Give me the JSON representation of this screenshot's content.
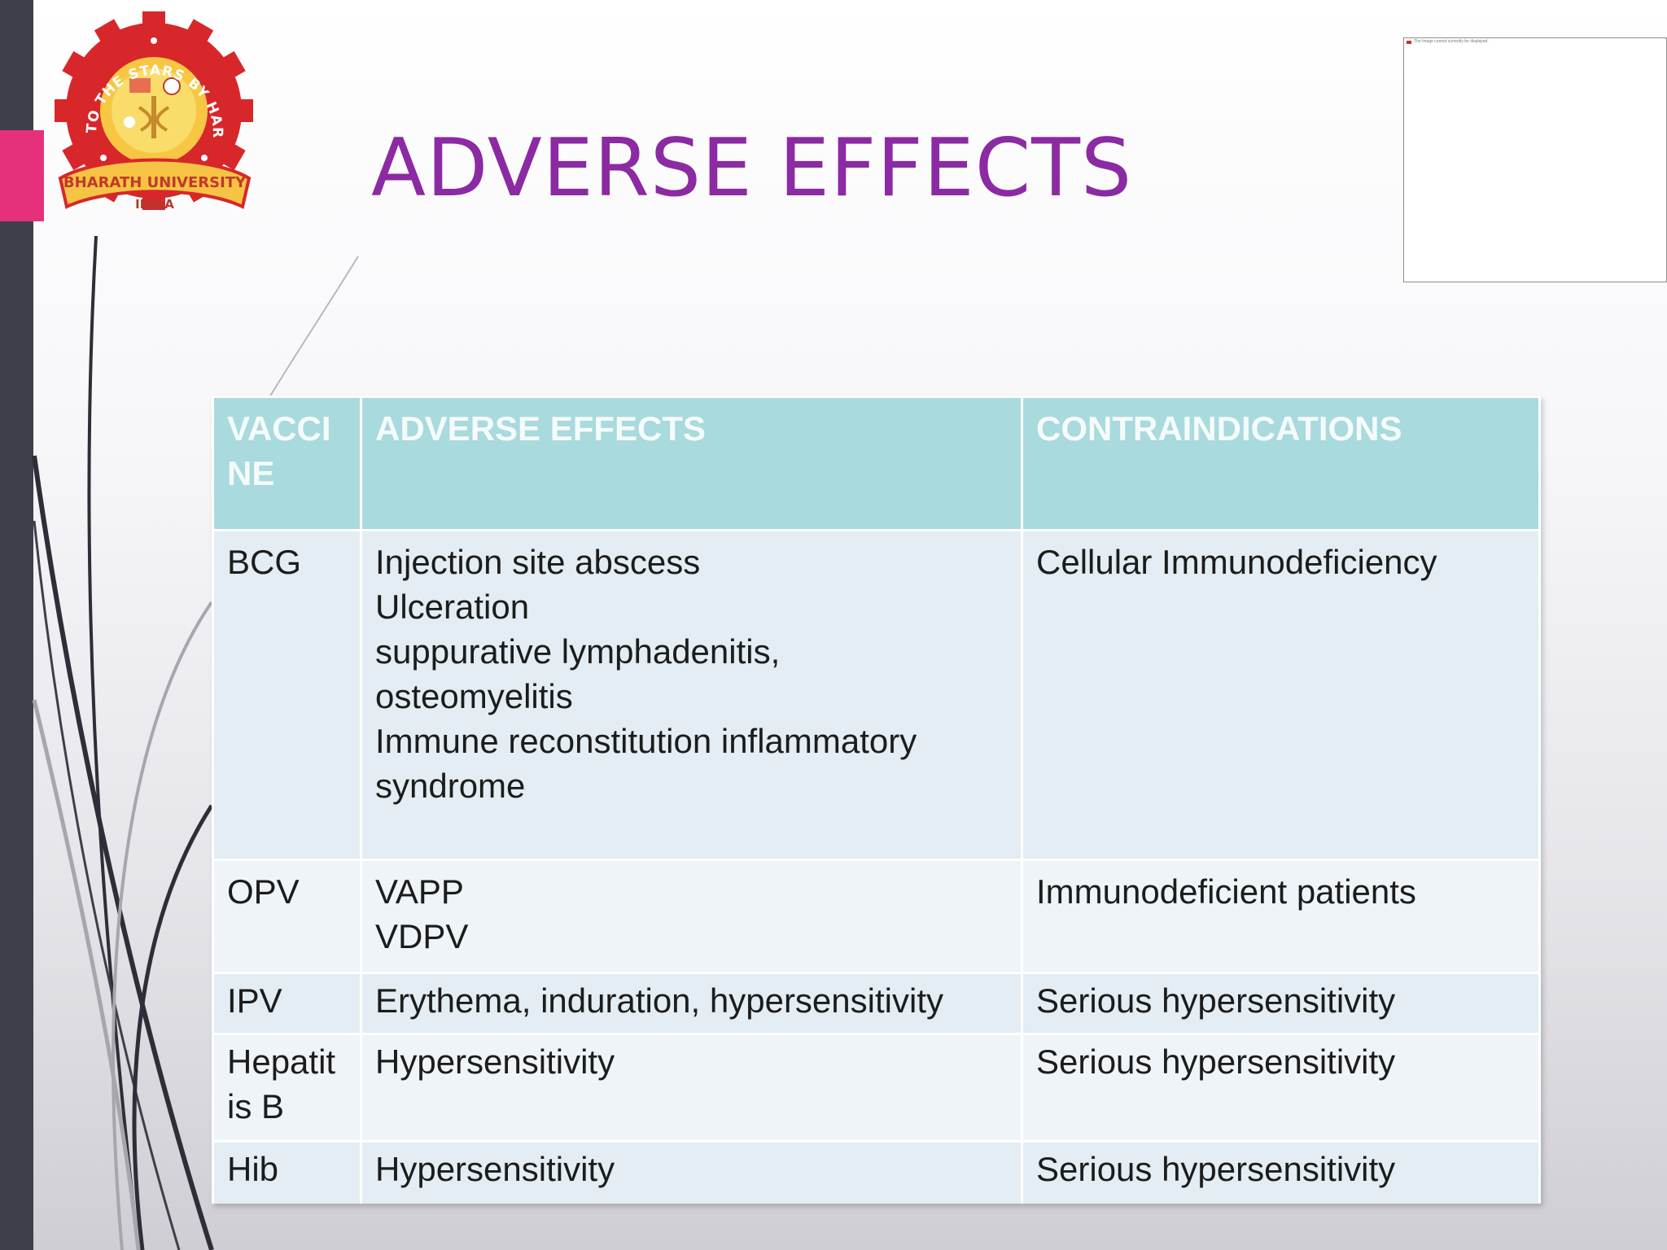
{
  "title": "ADVERSE EFFECTS",
  "logo": {
    "arc_text": "TO THE STARS BY HARD WORK",
    "ribbon_text": "BHARATH UNIVERSITY",
    "sub_text": "INDIA"
  },
  "thumbnail": {
    "caption": "The Image cannot currently be displayed."
  },
  "table": {
    "headers": [
      "VACCI NE",
      "ADVERSE EFFECTS",
      "CONTRAINDICATIONS"
    ],
    "header_lines": {
      "vaccine": [
        "VACCI",
        "NE"
      ]
    },
    "rows": [
      {
        "vaccine": [
          "BCG"
        ],
        "adverse": [
          "Injection site abscess",
          "Ulceration",
          "suppurative lymphadenitis,",
          "osteomyelitis",
          "Immune reconstitution inflammatory",
          "syndrome"
        ],
        "contra": [
          "Cellular Immunodeficiency"
        ]
      },
      {
        "vaccine": [
          "OPV"
        ],
        "adverse": [
          "VAPP",
          "VDPV"
        ],
        "contra": [
          "Immunodeficient patients"
        ]
      },
      {
        "vaccine": [
          "IPV"
        ],
        "adverse": [
          "Erythema, induration, hypersensitivity"
        ],
        "contra": [
          "Serious hypersensitivity"
        ]
      },
      {
        "vaccine": [
          "Hepatit",
          "is B"
        ],
        "adverse": [
          "Hypersensitivity"
        ],
        "contra": [
          "Serious hypersensitivity"
        ]
      },
      {
        "vaccine": [
          "Hib"
        ],
        "adverse": [
          "Hypersensitivity"
        ],
        "contra": [
          "Serious hypersensitivity"
        ]
      }
    ]
  },
  "colors": {
    "title": "#8b2aa3",
    "header_bg": "#a9dadd",
    "sidebar": "#3f3e4b",
    "accent_pink": "#e5317c"
  }
}
